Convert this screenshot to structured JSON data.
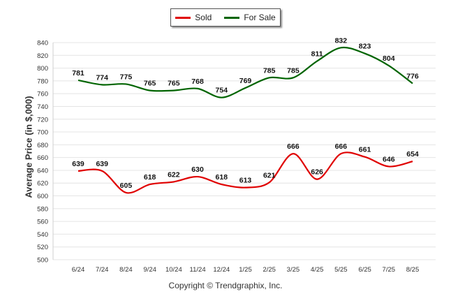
{
  "chart_data": {
    "type": "line",
    "categories": [
      "6/24",
      "7/24",
      "8/24",
      "9/24",
      "10/24",
      "11/24",
      "12/24",
      "1/25",
      "2/25",
      "3/25",
      "4/25",
      "5/25",
      "6/25",
      "7/25",
      "8/25"
    ],
    "series": [
      {
        "name": "Sold",
        "color": "#e00000",
        "values": [
          639,
          639,
          605,
          618,
          622,
          630,
          618,
          613,
          621,
          666,
          626,
          666,
          661,
          646,
          654
        ]
      },
      {
        "name": "For Sale",
        "color": "#006400",
        "values": [
          781,
          774,
          775,
          765,
          765,
          768,
          754,
          769,
          785,
          785,
          811,
          832,
          823,
          804,
          776
        ]
      }
    ],
    "ylabel": "Average Price (in $,000)",
    "ylim": [
      500,
      840
    ],
    "yticks": [
      500,
      520,
      540,
      560,
      580,
      600,
      620,
      640,
      660,
      680,
      700,
      720,
      740,
      760,
      780,
      800,
      820,
      840
    ],
    "grid": true,
    "legend_position": "top-center"
  },
  "footer": "Copyright © Trendgraphix, Inc."
}
